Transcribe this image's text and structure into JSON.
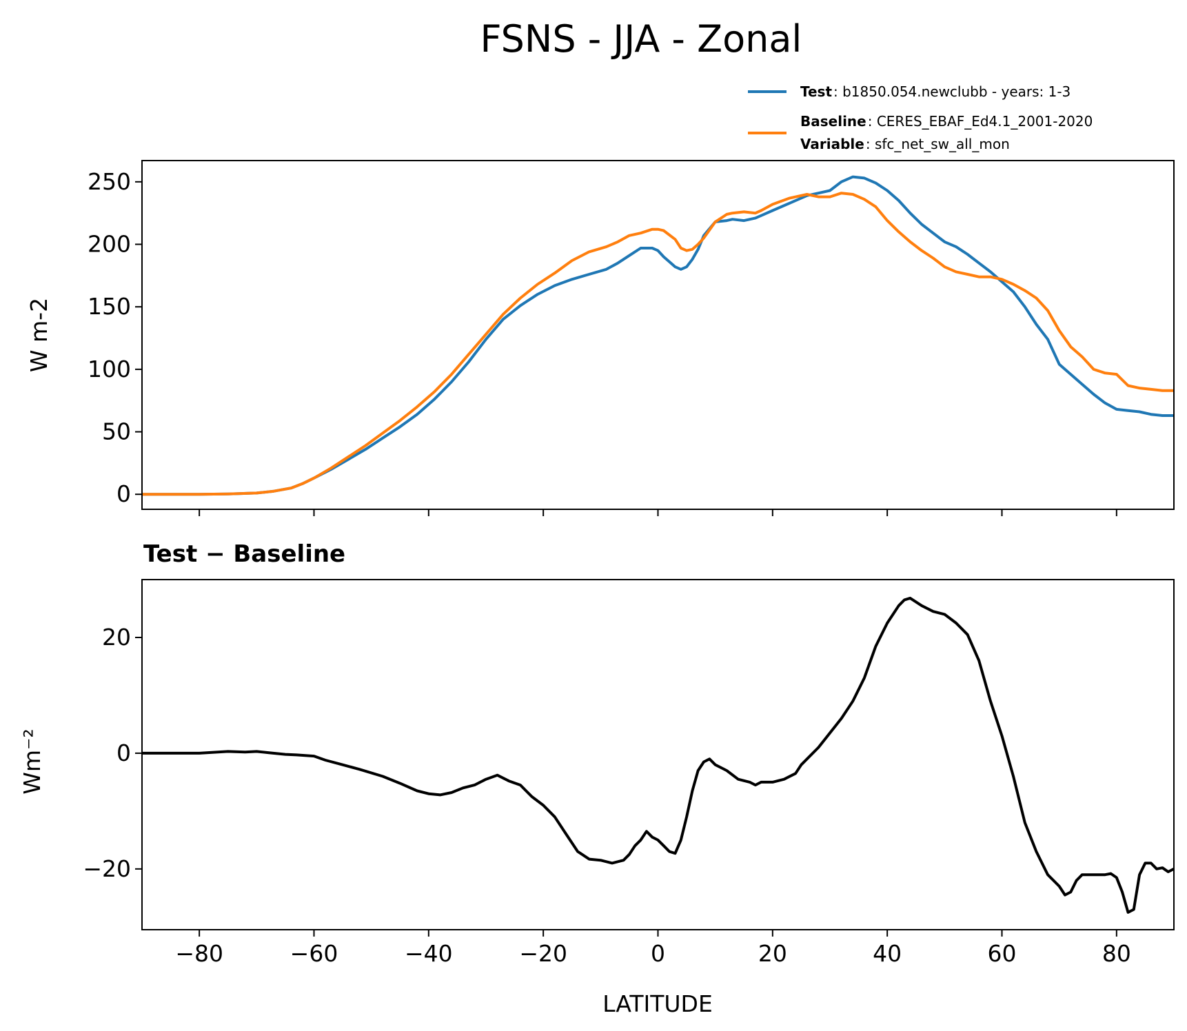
{
  "figure_title": "FSNS - JJA - Zonal",
  "colors": {
    "test": "#1f77b4",
    "baseline": "#ff7f0e",
    "diff": "#000000"
  },
  "legend": {
    "test_key": "Test",
    "test_value": ": b1850.054.newclubb - years: 1-3",
    "baseline_key": "Baseline",
    "baseline_value": ": CERES_EBAF_Ed4.1_2001-2020",
    "variable_key": "Variable",
    "variable_value": ": sfc_net_sw_all_mon"
  },
  "chart_data": [
    {
      "type": "line",
      "id": "top",
      "title": "",
      "xlabel": "",
      "ylabel": "W m-2",
      "xlim": [
        -90,
        90
      ],
      "ylim": [
        -12,
        267
      ],
      "yticks": [
        0,
        50,
        100,
        150,
        200,
        250
      ],
      "ytick_labels": [
        "0",
        "50",
        "100",
        "150",
        "200",
        "250"
      ],
      "xticks": [
        -80,
        -60,
        -40,
        -20,
        0,
        20,
        40,
        60,
        80
      ],
      "grid": false,
      "legend_position": "above-right",
      "series": [
        {
          "name": "Test",
          "color": "#1f77b4",
          "x": [
            -90,
            -85,
            -80,
            -75,
            -70,
            -67,
            -64,
            -62,
            -60,
            -57,
            -54,
            -51,
            -48,
            -45,
            -42,
            -39,
            -36,
            -33,
            -30,
            -27,
            -24,
            -21,
            -18,
            -15,
            -12,
            -9,
            -7,
            -5,
            -3,
            -1,
            0,
            1,
            3,
            4,
            5,
            6,
            7,
            8,
            10,
            12,
            13,
            15,
            17,
            18,
            20,
            23,
            26,
            28,
            30,
            32,
            34,
            36,
            38,
            40,
            42,
            44,
            46,
            48,
            50,
            52,
            54,
            56,
            58,
            60,
            62,
            64,
            66,
            68,
            70,
            72,
            74,
            76,
            78,
            80,
            82,
            84,
            86,
            88,
            90
          ],
          "values": [
            0,
            0,
            0,
            0.3,
            1,
            2.5,
            5,
            8.5,
            13,
            20,
            28,
            36,
            45,
            54,
            64,
            76,
            90,
            106,
            124,
            140,
            151,
            160,
            167,
            172,
            176,
            180,
            185,
            191,
            197,
            197,
            195,
            190,
            182,
            180,
            182,
            188,
            196,
            207,
            218,
            219,
            220,
            219,
            221,
            223,
            227,
            233,
            239,
            241,
            243,
            250,
            254,
            253,
            249,
            243,
            235,
            225,
            216,
            209,
            202,
            198,
            192,
            185,
            178,
            170,
            162,
            150,
            136,
            124,
            104,
            96,
            88,
            80,
            73,
            68,
            67,
            66,
            64,
            63,
            63
          ]
        },
        {
          "name": "Baseline",
          "color": "#ff7f0e",
          "x": [
            -90,
            -85,
            -80,
            -75,
            -70,
            -67,
            -64,
            -62,
            -60,
            -57,
            -54,
            -51,
            -48,
            -45,
            -42,
            -39,
            -36,
            -33,
            -30,
            -27,
            -24,
            -21,
            -18,
            -15,
            -12,
            -9,
            -7,
            -5,
            -3,
            -1,
            0,
            1,
            3,
            4,
            5,
            6,
            7,
            8,
            10,
            12,
            13,
            15,
            17,
            18,
            20,
            23,
            26,
            28,
            30,
            32,
            34,
            36,
            38,
            40,
            42,
            44,
            46,
            48,
            50,
            52,
            54,
            56,
            58,
            60,
            62,
            64,
            66,
            68,
            70,
            72,
            74,
            76,
            78,
            80,
            82,
            84,
            86,
            88,
            90
          ],
          "values": [
            0,
            0,
            0,
            0.3,
            1,
            2.5,
            5,
            8.5,
            13,
            21,
            30,
            39,
            49,
            59,
            70,
            82,
            96,
            112,
            128,
            144,
            157,
            168,
            177,
            187,
            194,
            198,
            202,
            207,
            209,
            212,
            212,
            211,
            204,
            197,
            195,
            196,
            200,
            205,
            218,
            224,
            225,
            226,
            225,
            227,
            232,
            237,
            240,
            238,
            238,
            241,
            240,
            236,
            230,
            219,
            210,
            202,
            195,
            189,
            182,
            178,
            176,
            174,
            174,
            172,
            168,
            163,
            157,
            147,
            131,
            118,
            110,
            100,
            97,
            96,
            87,
            85,
            84,
            83,
            83
          ]
        }
      ]
    },
    {
      "type": "line",
      "id": "bottom",
      "title": "Test − Baseline",
      "xlabel": "LATITUDE",
      "ylabel": "Wm⁻²",
      "xlim": [
        -90,
        90
      ],
      "ylim": [
        -30.5,
        30
      ],
      "yticks": [
        -20,
        0,
        20
      ],
      "ytick_labels": [
        "−20",
        "0",
        "20"
      ],
      "xticks": [
        -80,
        -60,
        -40,
        -20,
        0,
        20,
        40,
        60,
        80
      ],
      "xtick_labels": [
        "−80",
        "−60",
        "−40",
        "−20",
        "0",
        "20",
        "40",
        "60",
        "80"
      ],
      "grid": false,
      "series": [
        {
          "name": "Test - Baseline",
          "color": "#000000",
          "x": [
            -90,
            -85,
            -80,
            -75,
            -72,
            -70,
            -68,
            -65,
            -63,
            -60,
            -58,
            -55,
            -52,
            -48,
            -45,
            -42,
            -40,
            -38,
            -36,
            -34,
            -32,
            -30,
            -28,
            -26,
            -24,
            -22,
            -20,
            -18,
            -16,
            -14,
            -12,
            -10,
            -8,
            -6,
            -5,
            -4,
            -3,
            -2,
            -1,
            0,
            1,
            2,
            3,
            4,
            5,
            6,
            7,
            8,
            9,
            10,
            11,
            12,
            14,
            16,
            17,
            18,
            20,
            22,
            24,
            25,
            26,
            28,
            30,
            32,
            34,
            36,
            38,
            40,
            42,
            43,
            44,
            46,
            48,
            50,
            52,
            54,
            56,
            58,
            60,
            62,
            64,
            66,
            68,
            70,
            71,
            72,
            73,
            74,
            76,
            78,
            79,
            80,
            81,
            82,
            83,
            84,
            85,
            86,
            87,
            88,
            89,
            90
          ],
          "values": [
            0,
            0,
            0,
            0.3,
            0.2,
            0.3,
            0.1,
            -0.2,
            -0.3,
            -0.5,
            -1.2,
            -2,
            -2.8,
            -4,
            -5.2,
            -6.5,
            -7,
            -7.2,
            -6.8,
            -6,
            -5.5,
            -4.5,
            -3.8,
            -4.8,
            -5.5,
            -7.5,
            -9,
            -11,
            -14,
            -17,
            -18.3,
            -18.5,
            -19,
            -18.5,
            -17.5,
            -16,
            -15,
            -13.5,
            -14.5,
            -15,
            -16,
            -17,
            -17.3,
            -15,
            -11,
            -6.5,
            -3,
            -1.5,
            -1,
            -2,
            -2.5,
            -3,
            -4.5,
            -5,
            -5.5,
            -5,
            -5,
            -4.5,
            -3.5,
            -2,
            -1,
            1,
            3.5,
            6,
            9,
            13,
            18.5,
            22.5,
            25.5,
            26.5,
            26.8,
            25.5,
            24.5,
            24,
            22.5,
            20.5,
            16,
            9,
            3,
            -4,
            -12,
            -17,
            -21,
            -23,
            -24.5,
            -24,
            -22,
            -21,
            -21,
            -21,
            -20.8,
            -21.5,
            -24,
            -27.5,
            -27,
            -21,
            -19,
            -19,
            -20,
            -19.8,
            -20.5,
            -20
          ]
        }
      ]
    }
  ]
}
